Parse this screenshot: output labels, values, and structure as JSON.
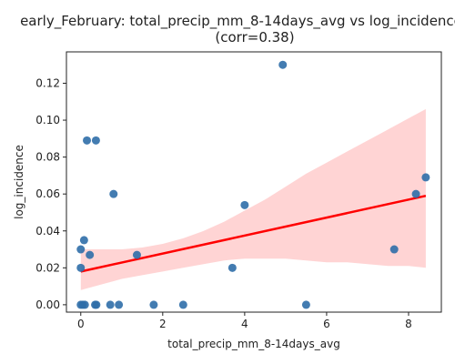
{
  "chart_data": {
    "type": "scatter",
    "title": "early_February: total_precip_mm_8-14days_avg vs log_incidence",
    "subtitle": "(corr=0.38)",
    "xlabel": "total_precip_mm_8-14days_avg",
    "ylabel": "log_incidence",
    "xlim": [
      -0.35,
      8.8
    ],
    "ylim": [
      -0.004,
      0.137
    ],
    "xticks": [
      "0",
      "2",
      "4",
      "6",
      "8"
    ],
    "yticks": [
      "0.00",
      "0.02",
      "0.04",
      "0.06",
      "0.08",
      "0.10",
      "0.12"
    ],
    "grid": false,
    "point_color": "#2f6ea8",
    "line_color": "#ff0000",
    "band_color": "#ffcccc",
    "points": [
      {
        "x": 0.0,
        "y": 0.0
      },
      {
        "x": 0.05,
        "y": 0.0
      },
      {
        "x": 0.1,
        "y": 0.0
      },
      {
        "x": 0.35,
        "y": 0.0
      },
      {
        "x": 0.38,
        "y": 0.0
      },
      {
        "x": 0.72,
        "y": 0.0
      },
      {
        "x": 0.93,
        "y": 0.0
      },
      {
        "x": 1.78,
        "y": 0.0
      },
      {
        "x": 2.5,
        "y": 0.0
      },
      {
        "x": 5.5,
        "y": 0.0
      },
      {
        "x": 0.0,
        "y": 0.02
      },
      {
        "x": 0.0,
        "y": 0.03
      },
      {
        "x": 0.08,
        "y": 0.035
      },
      {
        "x": 0.22,
        "y": 0.027
      },
      {
        "x": 0.15,
        "y": 0.089
      },
      {
        "x": 0.37,
        "y": 0.089
      },
      {
        "x": 0.8,
        "y": 0.06
      },
      {
        "x": 1.37,
        "y": 0.027
      },
      {
        "x": 3.7,
        "y": 0.02
      },
      {
        "x": 4.0,
        "y": 0.054
      },
      {
        "x": 4.93,
        "y": 0.13
      },
      {
        "x": 7.65,
        "y": 0.03
      },
      {
        "x": 8.18,
        "y": 0.06
      },
      {
        "x": 8.42,
        "y": 0.069
      }
    ],
    "regression": {
      "x": [
        0.0,
        8.42
      ],
      "y": [
        0.018,
        0.059
      ]
    },
    "confidence_band": {
      "x": [
        0.0,
        0.5,
        1.0,
        1.5,
        2.0,
        2.5,
        3.0,
        3.5,
        4.0,
        4.5,
        5.0,
        5.5,
        6.0,
        6.5,
        7.0,
        7.5,
        8.0,
        8.42
      ],
      "upper": [
        0.03,
        0.03,
        0.03,
        0.031,
        0.033,
        0.036,
        0.04,
        0.045,
        0.051,
        0.057,
        0.064,
        0.071,
        0.077,
        0.083,
        0.089,
        0.095,
        0.101,
        0.106
      ],
      "lower": [
        0.008,
        0.011,
        0.014,
        0.016,
        0.018,
        0.02,
        0.022,
        0.024,
        0.025,
        0.025,
        0.025,
        0.024,
        0.023,
        0.023,
        0.022,
        0.021,
        0.021,
        0.02
      ]
    }
  }
}
